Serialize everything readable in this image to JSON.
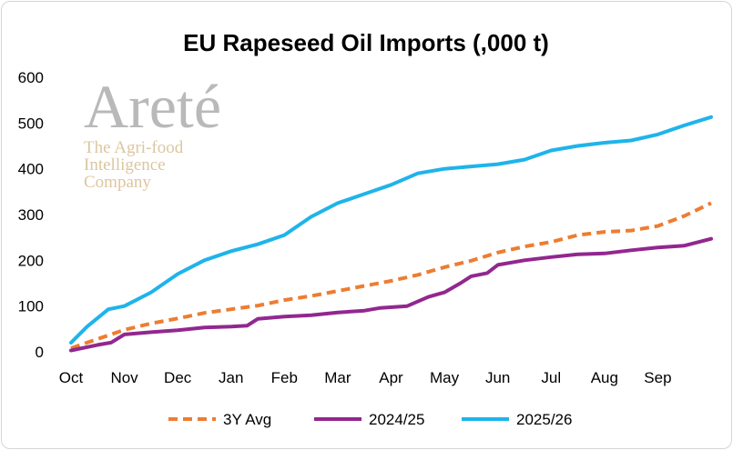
{
  "chart_data": {
    "type": "line",
    "title": "EU Rapeseed Oil Imports (,000 t)",
    "xlabel": "",
    "ylabel": "",
    "ylim": [
      0,
      600
    ],
    "yticks": [
      "0",
      "100",
      "200",
      "300",
      "400",
      "500",
      "600"
    ],
    "xlim": [
      0,
      12
    ],
    "months": [
      "Oct",
      "Nov",
      "Dec",
      "Jan",
      "Feb",
      "Mar",
      "Apr",
      "May",
      "Jun",
      "Jul",
      "Aug",
      "Sep"
    ],
    "grid": false,
    "legend_position": "bottom",
    "watermark": {
      "logo_word": "Areté",
      "tagline_1": "The Agri-food",
      "tagline_2": "Intelligence",
      "tagline_3": "Company"
    },
    "series": [
      {
        "name": "3Y Avg",
        "color": "#ED7D31",
        "style": "dashed",
        "x": [
          0,
          0.5,
          1,
          1.5,
          2,
          2.5,
          3,
          3.5,
          4,
          4.5,
          5,
          5.5,
          6,
          6.5,
          7,
          7.5,
          8,
          8.5,
          9,
          9.5,
          10,
          10.5,
          11,
          11.5,
          12
        ],
        "y": [
          8,
          28,
          48,
          62,
          73,
          85,
          93,
          101,
          113,
          122,
          133,
          144,
          155,
          168,
          185,
          199,
          217,
          230,
          240,
          255,
          262,
          265,
          275,
          297,
          325
        ]
      },
      {
        "name": "2024/25",
        "color": "#92278F",
        "style": "solid",
        "x": [
          0,
          0.5,
          0.75,
          1,
          1.5,
          2,
          2.5,
          3,
          3.3,
          3.5,
          4,
          4.5,
          5,
          5.5,
          5.8,
          6.05,
          6.3,
          6.7,
          7,
          7.3,
          7.5,
          7.8,
          8,
          8.5,
          9,
          9.5,
          10,
          10.5,
          11,
          11.5,
          12
        ],
        "y": [
          3,
          15,
          20,
          38,
          43,
          47,
          53,
          55,
          57,
          72,
          77,
          80,
          86,
          90,
          96,
          98,
          100,
          120,
          130,
          150,
          165,
          172,
          190,
          200,
          207,
          213,
          215,
          222,
          228,
          232,
          247
        ]
      },
      {
        "name": "2025/26",
        "color": "#1EB4EA",
        "style": "solid",
        "x": [
          0,
          0.3,
          0.7,
          1,
          1.5,
          2,
          2.5,
          3,
          3.5,
          4,
          4.5,
          5,
          5.5,
          6,
          6.5,
          7,
          7.5,
          8,
          8.5,
          9,
          9.5,
          10,
          10.5,
          11,
          11.5,
          12
        ],
        "y": [
          20,
          55,
          93,
          100,
          130,
          170,
          200,
          220,
          235,
          255,
          295,
          325,
          345,
          365,
          390,
          400,
          405,
          410,
          420,
          440,
          450,
          457,
          462,
          475,
          495,
          513
        ]
      }
    ]
  }
}
